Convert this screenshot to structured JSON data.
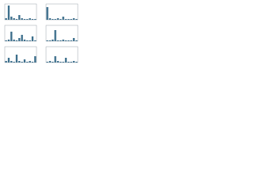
{
  "chart_data": [
    {
      "type": "bar",
      "color": "#3d6f8c",
      "ylim": [
        0,
        10
      ],
      "values": [
        1,
        9,
        2,
        1,
        0.5,
        3,
        1,
        0.5,
        0.5,
        1,
        0.5,
        0.5
      ]
    },
    {
      "type": "bar",
      "color": "#3d6f8c",
      "ylim": [
        0,
        10
      ],
      "values": [
        8,
        1,
        0.5,
        0.5,
        1,
        0.5,
        2,
        0.5,
        0.5,
        0.5,
        1,
        0.5
      ]
    },
    {
      "type": "bar",
      "color": "#3d6f8c",
      "ylim": [
        0,
        10
      ],
      "values": [
        0.5,
        1,
        6,
        1,
        0.5,
        2,
        4,
        1,
        0.5,
        0.5,
        3,
        0.5
      ]
    },
    {
      "type": "bar",
      "color": "#3d6f8c",
      "ylim": [
        0,
        10
      ],
      "values": [
        0.5,
        0.5,
        1,
        7,
        0.5,
        0.5,
        1,
        0.5,
        0.5,
        0.5,
        2,
        0.5
      ]
    },
    {
      "type": "bar",
      "color": "#3d6f8c",
      "ylim": [
        0,
        10
      ],
      "values": [
        1,
        3,
        1,
        0.5,
        5,
        1,
        0.5,
        2,
        0.5,
        1,
        0.5,
        4
      ]
    },
    {
      "type": "bar",
      "color": "#3d6f8c",
      "ylim": [
        0,
        10
      ],
      "values": [
        0.5,
        1,
        0.5,
        4,
        1,
        0.5,
        0.5,
        3,
        0.5,
        0.5,
        1,
        0.5
      ]
    }
  ]
}
